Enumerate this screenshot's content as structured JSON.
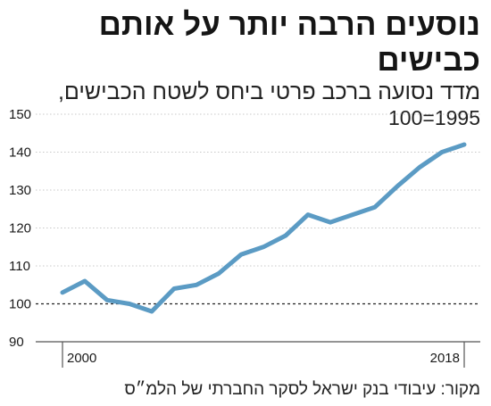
{
  "header": {
    "title": "נוסעים הרבה יותר על אותם כבישים",
    "subtitle": "מדד נסועה ברכב פרטי ביחס לשטח הכבישים,",
    "base_note": "100=1995"
  },
  "footer": {
    "source": "מקור: עיבודי בנק ישראל לסקר החברתי של הלמ״ס"
  },
  "colors": {
    "line": "#5b9bc4",
    "grid": "#c8c8c8",
    "baseline": "#222222",
    "axis": "#555555",
    "text": "#1a1a1a"
  },
  "chart_data": {
    "type": "line",
    "title": "נוסעים הרבה יותר על אותם כבישים",
    "xlabel": "",
    "ylabel": "",
    "x": [
      2000,
      2001,
      2002,
      2003,
      2004,
      2005,
      2006,
      2007,
      2008,
      2009,
      2010,
      2011,
      2012,
      2013,
      2014,
      2015,
      2016,
      2017,
      2018
    ],
    "series": [
      {
        "values": [
          103,
          106,
          101,
          100,
          98,
          104,
          105,
          108,
          113,
          115,
          118,
          123.5,
          121.5,
          123.5,
          125.5,
          131,
          136,
          140,
          142
        ]
      }
    ],
    "ylim": [
      90,
      150
    ],
    "yticks": [
      90,
      100,
      110,
      120,
      130,
      140,
      150
    ],
    "xtick_labels": [
      "2000",
      "2018"
    ],
    "reference_line": 100,
    "grid": true
  }
}
